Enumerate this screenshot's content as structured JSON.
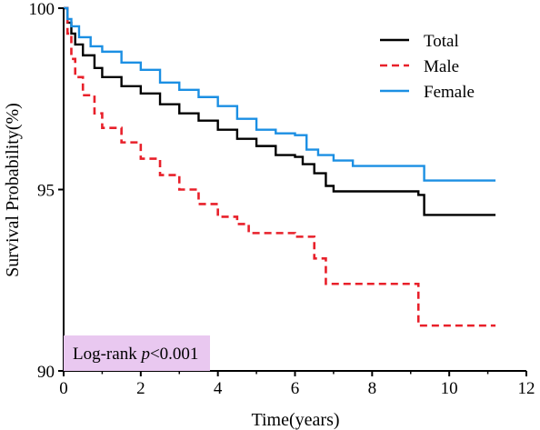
{
  "chart_data": {
    "type": "line",
    "step": true,
    "title": "",
    "xlabel": "Time(years)",
    "ylabel": "Survival Probability(%)",
    "xlim": [
      0,
      12
    ],
    "ylim": [
      90,
      100
    ],
    "xticks": [
      0,
      2,
      4,
      6,
      8,
      10,
      12
    ],
    "yticks": [
      90,
      95,
      100
    ],
    "grid": false,
    "legend_position": "top-right",
    "annotation": {
      "prefix": "Log-rank ",
      "italic": "p",
      "suffix": "<0.001",
      "background": "#e9c8f0",
      "position": "bottom-left"
    },
    "series": [
      {
        "name": "Total",
        "color": "#000000",
        "dash": "solid",
        "x": [
          0,
          0.1,
          0.2,
          0.3,
          0.5,
          0.8,
          1.0,
          1.5,
          2.0,
          2.5,
          3.0,
          3.5,
          4.0,
          4.5,
          5.0,
          5.5,
          6.0,
          6.2,
          6.5,
          6.8,
          7.0,
          9.2,
          9.35,
          11.2
        ],
        "y": [
          100,
          99.6,
          99.3,
          99.0,
          98.7,
          98.35,
          98.1,
          97.85,
          97.65,
          97.35,
          97.1,
          96.9,
          96.65,
          96.4,
          96.2,
          95.95,
          95.9,
          95.7,
          95.45,
          95.1,
          94.95,
          94.85,
          94.3,
          94.3
        ]
      },
      {
        "name": "Male",
        "color": "#e8202a",
        "dash": "dashed",
        "x": [
          0,
          0.1,
          0.2,
          0.3,
          0.5,
          0.8,
          1.0,
          1.5,
          2.0,
          2.5,
          3.0,
          3.5,
          4.0,
          4.5,
          4.8,
          6.0,
          6.5,
          6.8,
          9.2,
          11.2
        ],
        "y": [
          100,
          99.3,
          98.6,
          98.1,
          97.6,
          97.1,
          96.7,
          96.3,
          95.85,
          95.4,
          95.0,
          94.6,
          94.25,
          94.05,
          93.8,
          93.7,
          93.1,
          92.4,
          91.25,
          91.25
        ]
      },
      {
        "name": "Female",
        "color": "#1b8fe3",
        "dash": "solid",
        "x": [
          0,
          0.1,
          0.2,
          0.4,
          0.7,
          1.0,
          1.5,
          2.0,
          2.5,
          3.0,
          3.5,
          4.0,
          4.5,
          5.0,
          5.5,
          6.0,
          6.3,
          6.6,
          7.0,
          7.5,
          9.35,
          11.2
        ],
        "y": [
          100,
          99.7,
          99.5,
          99.2,
          98.95,
          98.8,
          98.5,
          98.3,
          97.95,
          97.75,
          97.55,
          97.3,
          96.95,
          96.65,
          96.55,
          96.5,
          96.1,
          95.95,
          95.8,
          95.65,
          95.25,
          95.25
        ]
      }
    ]
  }
}
